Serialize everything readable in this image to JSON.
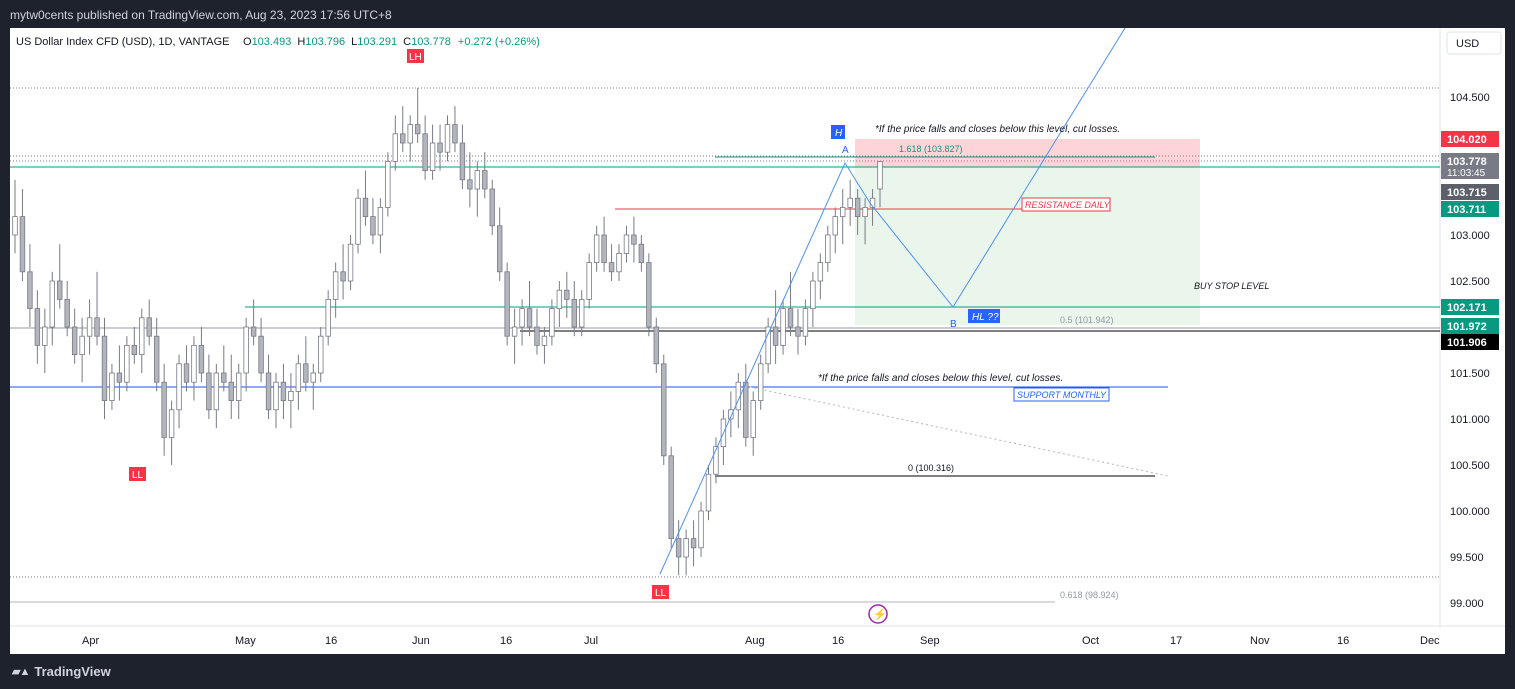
{
  "header": {
    "publisher": "mytw0cents published on TradingView.com, Aug 23, 2023 17:56 UTC+8"
  },
  "legend": {
    "symbol": "US Dollar Index CFD (USD), 1D, VANTAGE",
    "o_label": "O",
    "o": "103.493",
    "h_label": "H",
    "h": "103.796",
    "l_label": "L",
    "l": "103.291",
    "c_label": "C",
    "c": "103.778",
    "change": "+0.272 (+0.26%)"
  },
  "currency": "USD",
  "footer": {
    "brand": "TradingView",
    "logo": "tradingview-logo-icon"
  },
  "colors": {
    "up": "#9598a1",
    "down": "#b2b5be",
    "support": "#2962ff",
    "resistance": "#f23645",
    "green": "#089981",
    "target_zone": "#ffcdd2",
    "stop_zone": "#e8f5e9"
  },
  "chart_data": {
    "type": "candlestick",
    "timeframe": "1D",
    "ylim": [
      98.75,
      105.25
    ],
    "y_ticks": [
      "104.500",
      "103.000",
      "102.500",
      "101.500",
      "101.000",
      "100.500",
      "100.000",
      "99.500",
      "99.000"
    ],
    "x_ticks": [
      "Apr",
      "May",
      "16",
      "Jun",
      "16",
      "Jul",
      "Aug",
      "16",
      "Sep",
      "Oct",
      "17",
      "Nov",
      "16",
      "Dec"
    ],
    "price_tags": [
      {
        "value": "104.020",
        "color": "#f23645",
        "text_color": "#ffffff"
      },
      {
        "value": "103.778",
        "sub": "11:03:45",
        "color": "#787b86",
        "text_color": "#ffffff"
      },
      {
        "value": "103.715",
        "color": "#5d606b",
        "text_color": "#ffffff"
      },
      {
        "value": "103.711",
        "color": "#089981",
        "text_color": "#ffffff"
      },
      {
        "value": "102.171",
        "color": "#089981",
        "text_color": "#ffffff"
      },
      {
        "value": "101.972",
        "color": "#089981",
        "text_color": "#ffffff"
      },
      {
        "value": "101.906",
        "color": "#000000",
        "text_color": "#ffffff"
      }
    ],
    "candles": [
      [
        103.0,
        103.6,
        102.8,
        103.2
      ],
      [
        103.2,
        103.5,
        102.5,
        102.6
      ],
      [
        102.6,
        102.9,
        102.0,
        102.2
      ],
      [
        102.2,
        102.4,
        101.6,
        101.8
      ],
      [
        101.8,
        102.2,
        101.5,
        102.0
      ],
      [
        102.0,
        102.6,
        101.8,
        102.5
      ],
      [
        102.5,
        102.9,
        102.2,
        102.3
      ],
      [
        102.3,
        102.5,
        101.9,
        102.0
      ],
      [
        102.0,
        102.2,
        101.6,
        101.7
      ],
      [
        101.7,
        102.1,
        101.4,
        101.9
      ],
      [
        101.9,
        102.3,
        101.7,
        102.1
      ],
      [
        102.1,
        102.6,
        101.8,
        101.9
      ],
      [
        101.9,
        102.1,
        101.0,
        101.2
      ],
      [
        101.2,
        101.6,
        101.1,
        101.5
      ],
      [
        101.5,
        101.8,
        101.2,
        101.4
      ],
      [
        101.4,
        101.9,
        101.3,
        101.8
      ],
      [
        101.8,
        102.0,
        101.6,
        101.7
      ],
      [
        101.7,
        102.2,
        101.5,
        102.1
      ],
      [
        102.1,
        102.3,
        101.8,
        101.9
      ],
      [
        101.9,
        102.1,
        101.3,
        101.4
      ],
      [
        101.4,
        101.6,
        100.6,
        100.8
      ],
      [
        100.8,
        101.2,
        100.5,
        101.1
      ],
      [
        101.1,
        101.7,
        100.9,
        101.6
      ],
      [
        101.6,
        101.8,
        101.3,
        101.4
      ],
      [
        101.4,
        101.9,
        101.2,
        101.8
      ],
      [
        101.8,
        102.0,
        101.4,
        101.5
      ],
      [
        101.5,
        101.7,
        101.0,
        101.1
      ],
      [
        101.1,
        101.6,
        100.9,
        101.5
      ],
      [
        101.5,
        101.8,
        101.3,
        101.4
      ],
      [
        101.4,
        101.7,
        101.0,
        101.2
      ],
      [
        101.2,
        101.6,
        101.0,
        101.5
      ],
      [
        101.5,
        102.1,
        101.3,
        102.0
      ],
      [
        102.0,
        102.3,
        101.8,
        101.9
      ],
      [
        101.9,
        102.1,
        101.4,
        101.5
      ],
      [
        101.5,
        101.7,
        101.0,
        101.1
      ],
      [
        101.1,
        101.5,
        100.9,
        101.4
      ],
      [
        101.4,
        101.6,
        101.0,
        101.2
      ],
      [
        101.2,
        101.5,
        100.9,
        101.3
      ],
      [
        101.3,
        101.7,
        101.1,
        101.6
      ],
      [
        101.6,
        101.9,
        101.3,
        101.4
      ],
      [
        101.4,
        101.6,
        101.1,
        101.5
      ],
      [
        101.5,
        102.0,
        101.4,
        101.9
      ],
      [
        101.9,
        102.4,
        101.8,
        102.3
      ],
      [
        102.3,
        102.7,
        102.1,
        102.6
      ],
      [
        102.6,
        102.9,
        102.3,
        102.5
      ],
      [
        102.5,
        103.0,
        102.4,
        102.9
      ],
      [
        102.9,
        103.5,
        102.8,
        103.4
      ],
      [
        103.4,
        103.7,
        103.1,
        103.2
      ],
      [
        103.2,
        103.4,
        102.9,
        103.0
      ],
      [
        103.0,
        103.4,
        102.8,
        103.3
      ],
      [
        103.3,
        103.9,
        103.2,
        103.8
      ],
      [
        103.8,
        104.3,
        103.7,
        104.1
      ],
      [
        104.1,
        104.4,
        103.9,
        104.0
      ],
      [
        104.0,
        104.3,
        103.8,
        104.2
      ],
      [
        104.2,
        104.6,
        104.0,
        104.1
      ],
      [
        104.1,
        104.3,
        103.6,
        103.7
      ],
      [
        103.7,
        104.2,
        103.6,
        104.0
      ],
      [
        104.0,
        104.2,
        103.7,
        103.9
      ],
      [
        103.9,
        104.3,
        103.8,
        104.2
      ],
      [
        104.2,
        104.4,
        103.9,
        104.0
      ],
      [
        104.0,
        104.2,
        103.5,
        103.6
      ],
      [
        103.6,
        103.9,
        103.3,
        103.5
      ],
      [
        103.5,
        103.8,
        103.2,
        103.7
      ],
      [
        103.7,
        103.9,
        103.4,
        103.5
      ],
      [
        103.5,
        103.6,
        103.0,
        103.1
      ],
      [
        103.1,
        103.3,
        102.5,
        102.6
      ],
      [
        102.6,
        102.7,
        101.8,
        101.9
      ],
      [
        101.9,
        102.2,
        101.6,
        102.0
      ],
      [
        102.0,
        102.3,
        101.8,
        102.2
      ],
      [
        102.2,
        102.5,
        101.9,
        102.0
      ],
      [
        102.0,
        102.2,
        101.7,
        101.8
      ],
      [
        101.8,
        102.0,
        101.6,
        101.9
      ],
      [
        101.9,
        102.3,
        101.8,
        102.2
      ],
      [
        102.2,
        102.5,
        102.0,
        102.4
      ],
      [
        102.4,
        102.6,
        102.1,
        102.3
      ],
      [
        102.3,
        102.5,
        101.9,
        102.0
      ],
      [
        102.0,
        102.4,
        101.9,
        102.3
      ],
      [
        102.3,
        102.8,
        102.2,
        102.7
      ],
      [
        102.7,
        103.1,
        102.6,
        103.0
      ],
      [
        103.0,
        103.2,
        102.6,
        102.7
      ],
      [
        102.7,
        102.9,
        102.5,
        102.6
      ],
      [
        102.6,
        102.9,
        102.5,
        102.8
      ],
      [
        102.8,
        103.1,
        102.7,
        103.0
      ],
      [
        103.0,
        103.2,
        102.7,
        102.9
      ],
      [
        102.9,
        103.0,
        102.6,
        102.7
      ],
      [
        102.7,
        102.8,
        101.9,
        102.0
      ],
      [
        102.0,
        102.1,
        101.5,
        101.6
      ],
      [
        101.6,
        101.7,
        100.5,
        100.6
      ],
      [
        100.6,
        100.7,
        99.6,
        99.7
      ],
      [
        99.7,
        99.9,
        99.3,
        99.5
      ],
      [
        99.5,
        99.8,
        99.3,
        99.7
      ],
      [
        99.7,
        99.9,
        99.4,
        99.6
      ],
      [
        99.6,
        100.1,
        99.5,
        100.0
      ],
      [
        100.0,
        100.5,
        99.9,
        100.4
      ],
      [
        100.4,
        100.8,
        100.3,
        100.7
      ],
      [
        100.7,
        101.1,
        100.5,
        101.0
      ],
      [
        101.0,
        101.3,
        100.8,
        101.1
      ],
      [
        101.1,
        101.5,
        100.9,
        101.4
      ],
      [
        101.4,
        101.6,
        100.7,
        100.8
      ],
      [
        100.8,
        101.3,
        100.6,
        101.2
      ],
      [
        101.2,
        101.7,
        101.1,
        101.6
      ],
      [
        101.6,
        102.1,
        101.5,
        102.0
      ],
      [
        102.0,
        102.4,
        101.6,
        101.8
      ],
      [
        101.8,
        102.3,
        101.7,
        102.2
      ],
      [
        102.2,
        102.6,
        101.9,
        102.0
      ],
      [
        102.0,
        102.2,
        101.7,
        101.9
      ],
      [
        101.9,
        102.3,
        101.8,
        102.2
      ],
      [
        102.2,
        102.6,
        102.0,
        102.5
      ],
      [
        102.5,
        102.8,
        102.3,
        102.7
      ],
      [
        102.7,
        103.1,
        102.6,
        103.0
      ],
      [
        103.0,
        103.3,
        102.8,
        103.2
      ],
      [
        103.2,
        103.5,
        102.9,
        103.3
      ],
      [
        103.3,
        103.6,
        103.1,
        103.4
      ],
      [
        103.4,
        103.5,
        103.0,
        103.2
      ],
      [
        103.2,
        103.4,
        102.9,
        103.3
      ],
      [
        103.3,
        103.5,
        103.1,
        103.4
      ],
      [
        103.5,
        103.8,
        103.3,
        103.8
      ]
    ],
    "levels": [
      {
        "name": "resistance-daily",
        "value": 103.711,
        "label": "RESISTANCE DAILY",
        "color": "#f23645"
      },
      {
        "name": "support-monthly",
        "value": 101.3,
        "label": "SUPPORT MONTHLY",
        "color": "#2962ff"
      },
      {
        "name": "buy-stop-level",
        "value": 102.171,
        "label": "BUY STOP LEVEL",
        "color": "#089981"
      }
    ],
    "fib_labels": [
      {
        "text": "1.618 (103.827)",
        "value": 103.827
      },
      {
        "text": "0.5 (101.942)",
        "value": 101.942
      },
      {
        "text": "0 (100.316)",
        "value": 100.316
      },
      {
        "text": "0.618 (98.924)",
        "value": 98.924
      }
    ],
    "annotations": {
      "cut_loss_top": "*If the price falls and closes below this level, cut losses.",
      "cut_loss_bottom": "*If the price falls and closes below this level, cut losses.",
      "lh": "LH",
      "ll_left": "LL",
      "ll_bottom": "LL",
      "h": "H",
      "hl": "HL ??",
      "point_a": "A",
      "point_b": "B"
    }
  }
}
